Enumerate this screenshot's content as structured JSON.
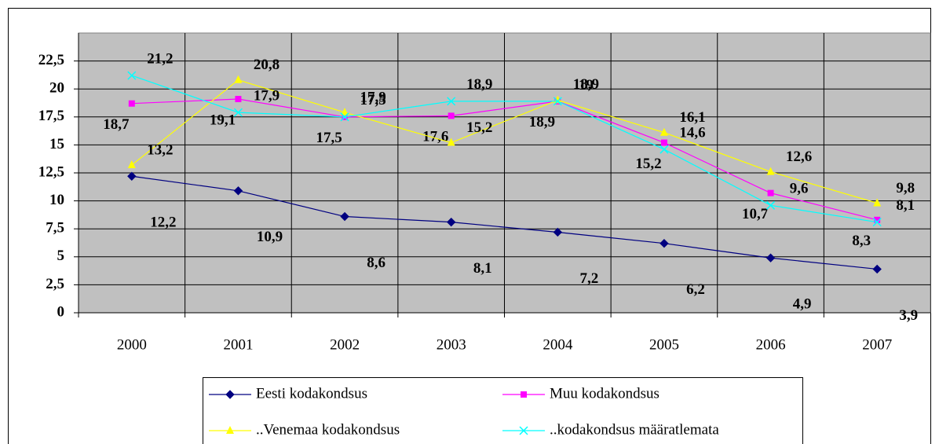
{
  "chart_data": {
    "type": "line",
    "categories": [
      "2000",
      "2001",
      "2002",
      "2003",
      "2004",
      "2005",
      "2006",
      "2007"
    ],
    "ylim": [
      0,
      25
    ],
    "yticks": [
      0,
      {
        "value": 2.5,
        "label": "2,5"
      },
      5,
      {
        "value": 7.5,
        "label": "7,5"
      },
      10,
      {
        "value": 12.5,
        "label": "12,5"
      },
      15,
      {
        "value": 17.5,
        "label": "17,5"
      },
      20,
      {
        "value": 22.5,
        "label": "22,5"
      }
    ],
    "grid": true,
    "legend": "bottom",
    "series": [
      {
        "name": "Eesti kodakondsus",
        "color": "#000080",
        "marker": "diamond",
        "values": [
          12.2,
          10.9,
          8.6,
          8.1,
          7.2,
          6.2,
          4.9,
          3.9
        ],
        "value_labels": [
          "12,2",
          "10,9",
          "8,6",
          "8,1",
          "7,2",
          "6,2",
          "4,9",
          "3,9"
        ]
      },
      {
        "name": "Muu kodakondsus",
        "color": "#ff00ff",
        "marker": "square",
        "values": [
          18.7,
          19.1,
          17.5,
          17.6,
          18.9,
          15.2,
          10.7,
          8.3
        ],
        "value_labels": [
          "18,7",
          "19,1",
          "17,5",
          "17,6",
          "18,9",
          "15,2",
          "10,7",
          "8,3"
        ]
      },
      {
        "name": "..Venemaa kodakondsus",
        "color": "#ffff00",
        "marker": "triangle",
        "values": [
          13.2,
          20.8,
          17.9,
          15.2,
          19,
          16.1,
          12.6,
          9.8
        ],
        "value_labels": [
          "13,2",
          "20,8",
          "17,9",
          "15,2",
          "19",
          "16,1",
          "12,6",
          "9,8"
        ]
      },
      {
        "name": "..kodakondsus  määratlemata",
        "color": "#00ffff",
        "marker": "x",
        "values": [
          21.2,
          17.9,
          17.5,
          18.9,
          18.9,
          14.6,
          9.6,
          8.1
        ],
        "value_labels": [
          "21,2",
          "17,9",
          "17,5",
          "18,9",
          "18,9",
          "14,6",
          "9,6",
          "8,1"
        ]
      }
    ]
  }
}
